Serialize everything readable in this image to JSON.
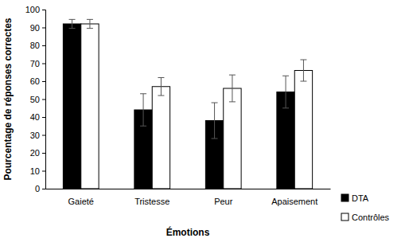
{
  "chart_data": {
    "type": "bar",
    "x_label": "Émotions",
    "y_label": "Pourcentage de réponses correctes",
    "categories": [
      "Gaieté",
      "Tristesse",
      "Peur",
      "Apaisement"
    ],
    "series": [
      {
        "name": "DTA",
        "color": "#000000",
        "values": [
          92,
          44,
          38,
          54
        ],
        "errors": [
          2.5,
          9,
          10,
          9
        ]
      },
      {
        "name": "Contrôles",
        "color": "#ffffff",
        "values": [
          92,
          57,
          56,
          66
        ],
        "errors": [
          2.5,
          5,
          7.5,
          6
        ]
      }
    ],
    "ylim": [
      0,
      100
    ],
    "yticks": [
      0,
      10,
      20,
      30,
      40,
      50,
      60,
      70,
      80,
      90,
      100
    ],
    "legend": "right"
  }
}
